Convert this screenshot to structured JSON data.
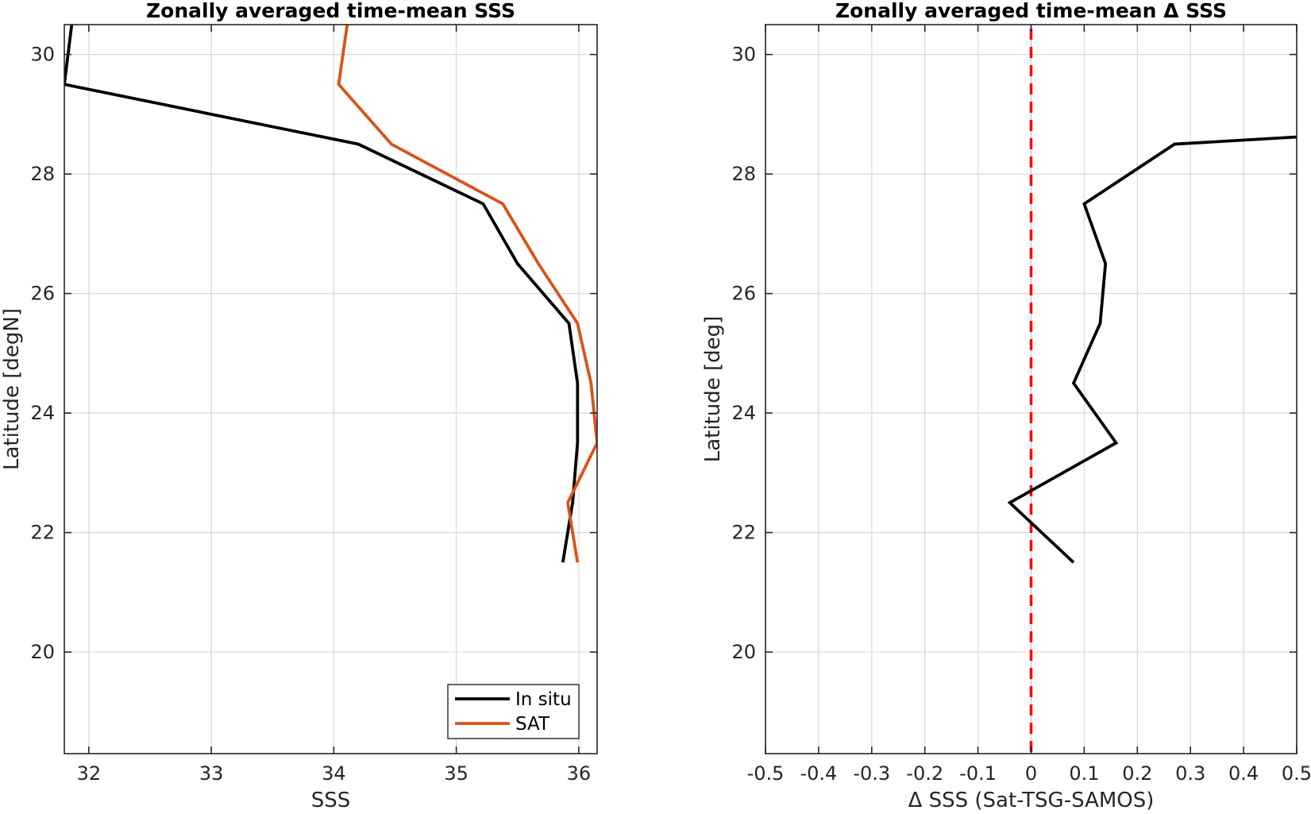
{
  "chart_data": [
    {
      "type": "line",
      "title": "Zonally averaged time-mean SSS",
      "xlabel": "SSS",
      "ylabel": "Latitude [degN]",
      "xlim": [
        31.8,
        36.15
      ],
      "ylim": [
        18.3,
        30.5
      ],
      "xticks": [
        32,
        33,
        34,
        35,
        36
      ],
      "yticks": [
        20,
        22,
        24,
        26,
        28,
        30
      ],
      "grid": true,
      "legend": "bottom-right",
      "series": [
        {
          "name": "In situ",
          "color": "#000000",
          "points": [
            {
              "x": 35.87,
              "y": 21.5
            },
            {
              "x": 35.95,
              "y": 22.5
            },
            {
              "x": 35.99,
              "y": 23.5
            },
            {
              "x": 35.99,
              "y": 24.5
            },
            {
              "x": 35.92,
              "y": 25.5
            },
            {
              "x": 35.5,
              "y": 26.5
            },
            {
              "x": 35.22,
              "y": 27.5
            },
            {
              "x": 34.2,
              "y": 28.5
            },
            {
              "x": 31.8,
              "y": 29.5
            },
            {
              "x": 31.86,
              "y": 30.5
            }
          ]
        },
        {
          "name": "SAT",
          "color": "#d95319",
          "points": [
            {
              "x": 35.99,
              "y": 21.5
            },
            {
              "x": 35.91,
              "y": 22.5
            },
            {
              "x": 36.15,
              "y": 23.5
            },
            {
              "x": 36.1,
              "y": 24.5
            },
            {
              "x": 35.99,
              "y": 25.5
            },
            {
              "x": 35.67,
              "y": 26.5
            },
            {
              "x": 35.38,
              "y": 27.5
            },
            {
              "x": 34.47,
              "y": 28.5
            },
            {
              "x": 34.04,
              "y": 29.5
            },
            {
              "x": 34.11,
              "y": 30.5
            }
          ]
        }
      ]
    },
    {
      "type": "line",
      "title": "Zonally averaged time-mean Δ SSS",
      "xlabel": "Δ SSS (Sat-TSG-SAMOS)",
      "ylabel": "Latitude [deg]",
      "xlim": [
        -0.5,
        0.5
      ],
      "ylim": [
        18.3,
        30.5
      ],
      "xticks": [
        -0.5,
        -0.4,
        -0.3,
        -0.2,
        -0.1,
        0,
        0.1,
        0.2,
        0.3,
        0.4,
        0.5
      ],
      "xtick_labels": [
        "-0.5",
        "-0.4",
        "-0.3",
        "-0.2",
        "-0.1",
        "0",
        "0.1",
        "0.2",
        "0.3",
        "0.4",
        "0.5"
      ],
      "yticks": [
        20,
        22,
        24,
        26,
        28,
        30
      ],
      "grid": true,
      "reference_line": {
        "x": 0,
        "style": "dashed",
        "color": "#ff0000"
      },
      "series": [
        {
          "color": "#000000",
          "points": [
            {
              "x": 0.08,
              "y": 21.5
            },
            {
              "x": -0.04,
              "y": 22.5
            },
            {
              "x": 0.16,
              "y": 23.5
            },
            {
              "x": 0.08,
              "y": 24.5
            },
            {
              "x": 0.13,
              "y": 25.5
            },
            {
              "x": 0.14,
              "y": 26.5
            },
            {
              "x": 0.1,
              "y": 27.5
            },
            {
              "x": 0.27,
              "y": 28.5
            },
            {
              "x": 0.5,
              "y": 28.62
            }
          ]
        }
      ]
    }
  ]
}
